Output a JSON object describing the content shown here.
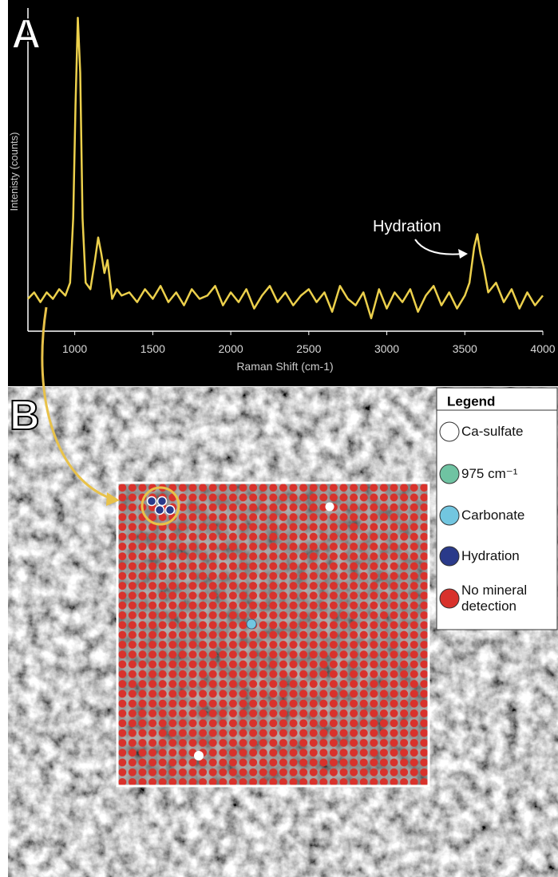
{
  "chart_data": {
    "type": "line",
    "y_label": "Intenisty (counts)",
    "x_label": "Raman Shift (cm-1)",
    "annotation": "Hydration",
    "color": "#ecd04c",
    "x": [
      700,
      740,
      780,
      820,
      860,
      900,
      940,
      970,
      990,
      1005,
      1020,
      1035,
      1050,
      1070,
      1100,
      1130,
      1150,
      1170,
      1190,
      1210,
      1240,
      1270,
      1300,
      1350,
      1400,
      1450,
      1500,
      1550,
      1600,
      1650,
      1700,
      1750,
      1800,
      1850,
      1900,
      1950,
      2000,
      2050,
      2100,
      2150,
      2200,
      2250,
      2300,
      2350,
      2400,
      2450,
      2500,
      2550,
      2600,
      2650,
      2700,
      2750,
      2800,
      2850,
      2900,
      2950,
      3000,
      3050,
      3100,
      3150,
      3200,
      3250,
      3300,
      3350,
      3400,
      3450,
      3500,
      3530,
      3560,
      3580,
      3600,
      3620,
      3650,
      3700,
      3750,
      3800,
      3850,
      3900,
      3950,
      4000
    ],
    "values": [
      10,
      12,
      9,
      12,
      10,
      13,
      11,
      15,
      35,
      70,
      97,
      80,
      35,
      15,
      13,
      22,
      29,
      24,
      18,
      22,
      10,
      13,
      11,
      12,
      9,
      13,
      10,
      14,
      9,
      12,
      8,
      13,
      10,
      11,
      14,
      8,
      12,
      9,
      13,
      7,
      11,
      14,
      9,
      12,
      8,
      11,
      13,
      9,
      12,
      6,
      14,
      10,
      8,
      12,
      4,
      13,
      7,
      12,
      9,
      13,
      6,
      11,
      14,
      8,
      12,
      7,
      11,
      15,
      26,
      30,
      24,
      20,
      12,
      15,
      9,
      13,
      7,
      12,
      8,
      11
    ],
    "xlim": [
      700,
      4000
    ],
    "ylim": [
      0,
      100
    ],
    "xticks": [
      1000,
      1500,
      2000,
      2500,
      3000,
      3500,
      4000
    ]
  },
  "panel_labels": [
    "A",
    "B"
  ],
  "legend": {
    "title": "Legend",
    "items": [
      {
        "label": "Ca-sulfate",
        "color": "#ffffff"
      },
      {
        "label": "975 cm⁻¹",
        "color": "#6fc3a2"
      },
      {
        "label": "Carbonate",
        "color": "#72c6e0"
      },
      {
        "label": "Hydration",
        "color": "#2a3a8a"
      },
      {
        "label": "No mineral detection",
        "color": "#d8322c"
      }
    ]
  }
}
